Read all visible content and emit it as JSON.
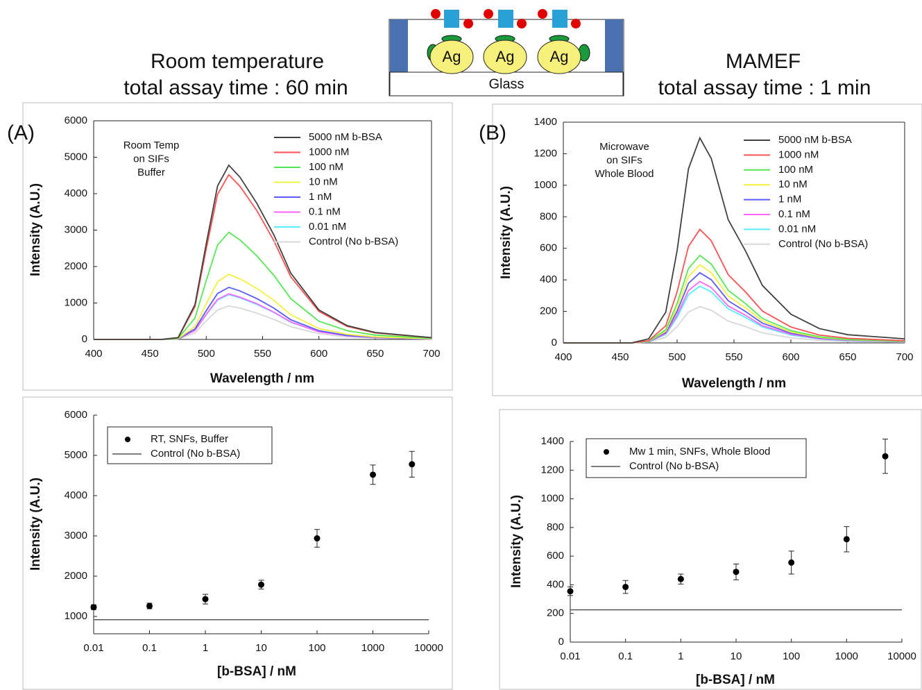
{
  "header": {
    "left": [
      "Room temperature",
      "total assay time : 60 min"
    ],
    "right": [
      "MAMEF",
      "total assay time : 1 min"
    ]
  },
  "diagram": {
    "particles": [
      "Ag",
      "Ag",
      "Ag"
    ],
    "substrate": "Glass"
  },
  "chart_data": [
    {
      "type": "line",
      "panel_label": "(A)",
      "note": [
        "Room Temp",
        "on SIFs",
        "Buffer"
      ],
      "xlabel": "Wavelength / nm",
      "ylabel": "Intensity (A.U.)",
      "xlim": [
        400,
        700
      ],
      "xticks": [
        400,
        450,
        500,
        550,
        600,
        650,
        700
      ],
      "ylim": [
        0,
        6000
      ],
      "yticks": [
        0,
        1000,
        2000,
        3000,
        4000,
        5000,
        6000
      ],
      "grid": false,
      "x": [
        400,
        460,
        475,
        490,
        500,
        510,
        520,
        530,
        545,
        560,
        575,
        600,
        625,
        650,
        700
      ],
      "series": [
        {
          "name": "5000 nM b-BSA",
          "color": "#404040",
          "values": [
            0,
            0,
            50,
            960,
            2630,
            4210,
            4780,
            4450,
            3730,
            2870,
            1820,
            810,
            380,
            190,
            50
          ]
        },
        {
          "name": "1000 nM",
          "color": "#ff5050",
          "values": [
            0,
            0,
            45,
            900,
            2490,
            3980,
            4520,
            4200,
            3530,
            2710,
            1720,
            770,
            360,
            180,
            45
          ]
        },
        {
          "name": "100 nM",
          "color": "#55e855",
          "values": [
            0,
            0,
            30,
            590,
            1620,
            2590,
            2940,
            2730,
            2290,
            1760,
            1120,
            500,
            240,
            120,
            30
          ]
        },
        {
          "name": "10 nM",
          "color": "#f5f040",
          "values": [
            0,
            0,
            20,
            360,
            980,
            1580,
            1790,
            1660,
            1400,
            1070,
            680,
            300,
            140,
            70,
            20
          ]
        },
        {
          "name": "1 nM",
          "color": "#5a5aff",
          "values": [
            0,
            0,
            15,
            290,
            790,
            1260,
            1430,
            1330,
            1120,
            860,
            540,
            240,
            110,
            60,
            15
          ]
        },
        {
          "name": "0.1 nM",
          "color": "#ff66ff",
          "values": [
            0,
            0,
            13,
            250,
            690,
            1100,
            1250,
            1160,
            980,
            750,
            480,
            210,
            100,
            50,
            13
          ]
        },
        {
          "name": "0.01 nM",
          "color": "#55eeff",
          "values": [
            0,
            0,
            12,
            250,
            680,
            1080,
            1230,
            1140,
            960,
            740,
            470,
            210,
            100,
            50,
            12
          ]
        },
        {
          "name": "Control (No b-BSA)",
          "color": "#d8d8d8",
          "values": [
            0,
            0,
            9,
            180,
            510,
            810,
            920,
            860,
            720,
            550,
            350,
            160,
            70,
            40,
            9
          ]
        }
      ]
    },
    {
      "type": "line",
      "panel_label": "(B)",
      "note": [
        "Microwave",
        "on SIFs",
        "Whole Blood"
      ],
      "xlabel": "Wavelength / nm",
      "ylabel": "Intensity (A.U.)",
      "xlim": [
        400,
        700
      ],
      "xticks": [
        400,
        450,
        500,
        550,
        600,
        650,
        700
      ],
      "ylim": [
        0,
        1400
      ],
      "yticks": [
        0,
        200,
        400,
        600,
        800,
        1000,
        1200,
        1400
      ],
      "grid": false,
      "x": [
        400,
        460,
        475,
        490,
        500,
        510,
        520,
        530,
        545,
        560,
        575,
        600,
        625,
        650,
        700
      ],
      "series": [
        {
          "name": "5000 nM b-BSA",
          "color": "#404040",
          "values": [
            0,
            0,
            26,
            195,
            585,
            1105,
            1300,
            1170,
            780,
            585,
            364,
            182,
            91,
            52,
            26
          ]
        },
        {
          "name": "1000 nM",
          "color": "#ff5050",
          "values": [
            0,
            0,
            14,
            108,
            324,
            612,
            720,
            648,
            432,
            324,
            202,
            101,
            50,
            29,
            14
          ]
        },
        {
          "name": "100 nM",
          "color": "#55e855",
          "values": [
            0,
            0,
            11,
            83,
            250,
            472,
            555,
            500,
            333,
            250,
            155,
            78,
            39,
            22,
            11
          ]
        },
        {
          "name": "10 nM",
          "color": "#f5f040",
          "values": [
            0,
            0,
            10,
            74,
            223,
            421,
            495,
            446,
            297,
            223,
            139,
            69,
            35,
            20,
            10
          ]
        },
        {
          "name": "1 nM",
          "color": "#5a5aff",
          "values": [
            0,
            0,
            9,
            67,
            200,
            378,
            445,
            401,
            267,
            200,
            125,
            62,
            31,
            18,
            9
          ]
        },
        {
          "name": "0.1 nM",
          "color": "#ff66ff",
          "values": [
            0,
            0,
            8,
            59,
            176,
            332,
            390,
            351,
            234,
            176,
            109,
            55,
            27,
            16,
            8
          ]
        },
        {
          "name": "0.01 nM",
          "color": "#55eeff",
          "values": [
            0,
            0,
            7,
            54,
            162,
            306,
            360,
            324,
            216,
            162,
            101,
            50,
            25,
            14,
            7
          ]
        },
        {
          "name": "Control (No b-BSA)",
          "color": "#d8d8d8",
          "values": [
            0,
            0,
            5,
            35,
            104,
            196,
            230,
            207,
            138,
            104,
            64,
            32,
            16,
            9,
            5
          ]
        }
      ]
    },
    {
      "type": "scatter",
      "xlabel": "[b-BSA] / nM",
      "ylabel": "Intensity (A.U.)",
      "xlog": true,
      "xlim": [
        0.01,
        10000
      ],
      "xticks": [
        0.01,
        0.1,
        1,
        10,
        100,
        1000,
        10000
      ],
      "ylim": [
        570,
        6000
      ],
      "yticks": [
        1000,
        2000,
        3000,
        4000,
        5000,
        6000
      ],
      "grid": false,
      "series": [
        {
          "name": "RT, SNFs, Buffer",
          "color": "#000000",
          "x": [
            0.01,
            0.1,
            1,
            10,
            100,
            1000,
            5000
          ],
          "values": [
            1230,
            1260,
            1430,
            1790,
            2940,
            4520,
            4780
          ],
          "errors": [
            60,
            70,
            120,
            110,
            220,
            240,
            320
          ]
        },
        {
          "name": "Control (No b-BSA)",
          "color": "#555555",
          "x": [
            0.01,
            10000
          ],
          "values": [
            920,
            920
          ]
        }
      ]
    },
    {
      "type": "scatter",
      "xlabel": "[b-BSA]  / nM",
      "ylabel": "Intensity (A.U.)",
      "xlog": true,
      "xlim": [
        0.01,
        10000
      ],
      "xticks": [
        0.01,
        0.1,
        1,
        10,
        100,
        1000,
        10000
      ],
      "ylim": [
        0,
        1400
      ],
      "yticks": [
        0,
        200,
        400,
        600,
        800,
        1000,
        1200,
        1400
      ],
      "grid": false,
      "series": [
        {
          "name": "Mw 1 min, SNFs, Whole Blood",
          "color": "#000000",
          "x": [
            0.01,
            0.1,
            1,
            10,
            100,
            1000,
            5000
          ],
          "values": [
            355,
            385,
            440,
            490,
            555,
            718,
            1297
          ],
          "errors": [
            30,
            45,
            35,
            55,
            80,
            88,
            120
          ]
        },
        {
          "name": "Control (No b-BSA)",
          "color": "#555555",
          "x": [
            0.01,
            10000
          ],
          "values": [
            225,
            225
          ]
        }
      ]
    }
  ]
}
